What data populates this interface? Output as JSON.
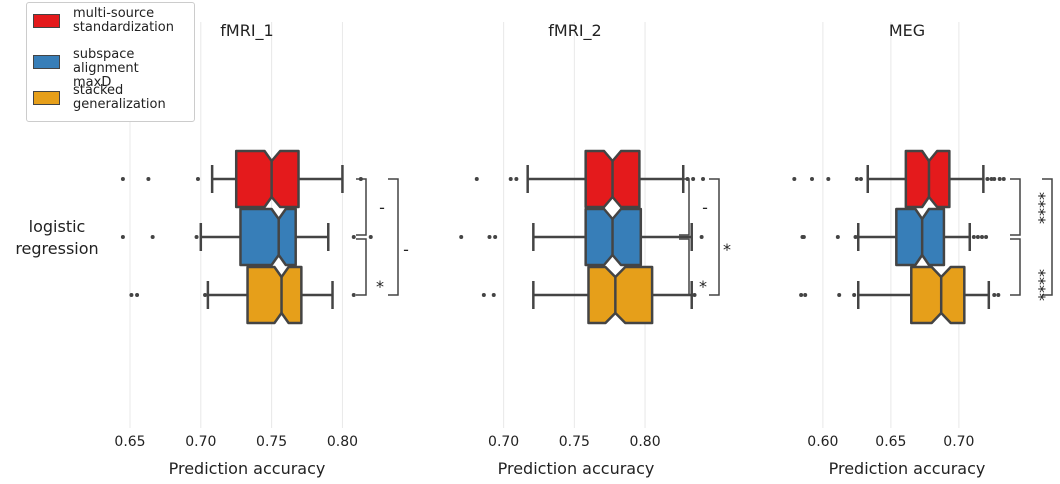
{
  "chart_data": [
    {
      "type": "box",
      "title": "fMRI_1",
      "xlabel": "Prediction accuracy",
      "ylabel": "logistic regression",
      "xticks": [
        "0.65",
        "0.70",
        "0.75",
        "0.80"
      ],
      "xlim": [
        0.638,
        0.835
      ],
      "series": [
        {
          "name": "multi-source standardization",
          "whisker_low": 0.708,
          "q1": 0.725,
          "median": 0.75,
          "q3": 0.769,
          "whisker_high": 0.8,
          "notch_low": 0.745,
          "notch_high": 0.756,
          "outliers": [
            0.645,
            0.663,
            0.698,
            0.813
          ]
        },
        {
          "name": "subspace alignment maxD",
          "whisker_low": 0.7,
          "q1": 0.728,
          "median": 0.755,
          "q3": 0.767,
          "whisker_high": 0.79,
          "notch_low": 0.75,
          "notch_high": 0.76,
          "outliers": [
            0.645,
            0.666,
            0.697,
            0.808,
            0.82
          ]
        },
        {
          "name": "stacked generalization",
          "whisker_low": 0.705,
          "q1": 0.733,
          "median": 0.757,
          "q3": 0.771,
          "whisker_high": 0.793,
          "notch_low": 0.752,
          "notch_high": 0.762,
          "outliers": [
            0.651,
            0.655,
            0.703,
            0.808
          ]
        }
      ],
      "significance": [
        {
          "pair": [
            0,
            1
          ],
          "label": "-"
        },
        {
          "pair": [
            1,
            2
          ],
          "label": "*"
        },
        {
          "pair": [
            0,
            2
          ],
          "label": "-"
        }
      ]
    },
    {
      "type": "box",
      "title": "fMRI_2",
      "xlabel": "Prediction accuracy",
      "xticks": [
        "0.70",
        "0.75",
        "0.80"
      ],
      "xlim": [
        0.655,
        0.853
      ],
      "series": [
        {
          "name": "multi-source standardization",
          "whisker_low": 0.717,
          "q1": 0.758,
          "median": 0.777,
          "q3": 0.796,
          "whisker_high": 0.827,
          "notch_low": 0.771,
          "notch_high": 0.783,
          "outliers": [
            0.681,
            0.705,
            0.709,
            0.83,
            0.834,
            0.841
          ]
        },
        {
          "name": "subspace alignment maxD",
          "whisker_low": 0.721,
          "q1": 0.758,
          "median": 0.777,
          "q3": 0.797,
          "whisker_high": 0.833,
          "notch_low": 0.771,
          "notch_high": 0.783,
          "outliers": [
            0.67,
            0.69,
            0.694,
            0.84
          ]
        },
        {
          "name": "stacked generalization",
          "whisker_low": 0.721,
          "q1": 0.76,
          "median": 0.779,
          "q3": 0.805,
          "whisker_high": 0.833,
          "notch_low": 0.772,
          "notch_high": 0.786,
          "outliers": [
            0.686,
            0.693,
            0.835
          ]
        }
      ],
      "significance": [
        {
          "pair": [
            0,
            1
          ],
          "label": "-"
        },
        {
          "pair": [
            1,
            2
          ],
          "label": "*"
        },
        {
          "pair": [
            0,
            2
          ],
          "label": "*"
        }
      ]
    },
    {
      "type": "box",
      "title": "MEG",
      "xlabel": "Prediction accuracy",
      "xticks": [
        "0.60",
        "0.65",
        "0.70"
      ],
      "xlim": [
        0.567,
        0.742
      ],
      "series": [
        {
          "name": "multi-source standardization",
          "whisker_low": 0.633,
          "q1": 0.661,
          "median": 0.678,
          "q3": 0.693,
          "whisker_high": 0.718,
          "notch_low": 0.673,
          "notch_high": 0.684,
          "outliers": [
            0.579,
            0.592,
            0.604,
            0.625,
            0.628,
            0.721,
            0.724,
            0.726,
            0.73,
            0.733
          ]
        },
        {
          "name": "subspace alignment maxD",
          "whisker_low": 0.626,
          "q1": 0.654,
          "median": 0.673,
          "q3": 0.689,
          "whisker_high": 0.708,
          "notch_low": 0.668,
          "notch_high": 0.678,
          "outliers": [
            0.585,
            0.586,
            0.611,
            0.624,
            0.711,
            0.714,
            0.717,
            0.72
          ]
        },
        {
          "name": "stacked generalization",
          "whisker_low": 0.626,
          "q1": 0.665,
          "median": 0.687,
          "q3": 0.704,
          "whisker_high": 0.722,
          "notch_low": 0.68,
          "notch_high": 0.694,
          "outliers": [
            0.584,
            0.587,
            0.612,
            0.623,
            0.726,
            0.729
          ]
        }
      ],
      "significance": [
        {
          "pair": [
            0,
            1
          ],
          "label": "****"
        },
        {
          "pair": [
            1,
            2
          ],
          "label": "****"
        },
        {
          "pair": [
            0,
            2
          ],
          "label": "****"
        }
      ]
    }
  ],
  "legend": {
    "placement": "top-left",
    "items": [
      {
        "label": "multi-source\nstandardization",
        "color": "#e41a1c"
      },
      {
        "label": "subspace\nalignment maxD",
        "color": "#377eb8"
      },
      {
        "label": "stacked\ngeneralization",
        "color": "#e69f1a"
      }
    ]
  },
  "colors": {
    "outline": "#444444",
    "grid": "#e8e8e8",
    "text": "#222222"
  }
}
